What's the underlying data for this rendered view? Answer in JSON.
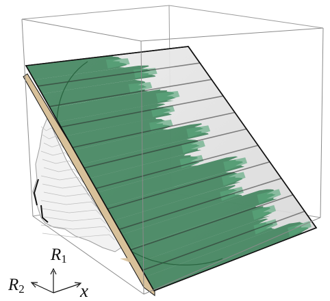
{
  "colors": {
    "box_edge": "#8a8a8a",
    "slab_outline": "#111111",
    "slab_fill": "#e3e3e3",
    "green_fill": "#2f7a4f",
    "green_light": "#5aa77c",
    "tan_fill": "#d9c29b",
    "white_mesh": "#f1f1f1",
    "mesh_line": "#b9b9b9",
    "axis": "#111111"
  },
  "axes": {
    "r1_label": "R",
    "r1_sub": "1",
    "r2_label": "R",
    "r2_sub": "2",
    "x_label": "x"
  }
}
